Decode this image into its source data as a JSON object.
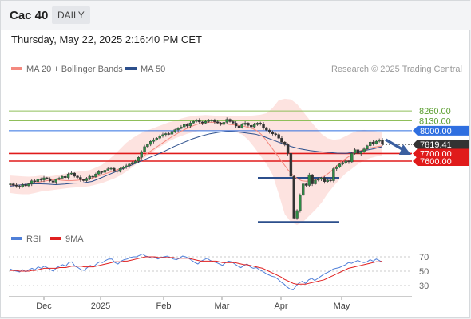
{
  "header": {
    "symbol": "Cac 40",
    "period": "DAILY"
  },
  "timestamp": "Thursday, May 22, 2025 2:16:40 PM CET",
  "credit": "Research © 2025 Trading Central",
  "legend": {
    "main": [
      {
        "label": "MA 20 + Bollinger Bands",
        "color": "#f4897f"
      },
      {
        "label": "MA 50",
        "color": "#2c4f8c"
      }
    ],
    "rsi": [
      {
        "label": "RSI",
        "color": "#4f7fd8"
      },
      {
        "label": "9MA",
        "color": "#e02020"
      }
    ]
  },
  "chart_data": [
    {
      "type": "candlestick",
      "x_labels": [
        "Dec",
        "2025",
        "Feb",
        "Mar",
        "Apr",
        "May"
      ],
      "price_levels": [
        {
          "value": 8260,
          "label": "8260.00",
          "color": "#8fbf5a",
          "style": "line"
        },
        {
          "value": 8130,
          "label": "8130.00",
          "color": "#8fbf5a",
          "style": "line"
        },
        {
          "value": 8000,
          "label": "8000.00",
          "color": "#2f6fe0",
          "style": "tag"
        },
        {
          "value": 7819.41,
          "label": "7819.41",
          "color": "#333333",
          "style": "tag"
        },
        {
          "value": 7700,
          "label": "7700.00",
          "color": "#e01b1b",
          "style": "tag"
        },
        {
          "value": 7600,
          "label": "7600.00",
          "color": "#e01b1b",
          "style": "tag"
        }
      ],
      "support_lines": [
        7380,
        6800
      ],
      "forecast_arrow": "down",
      "ohlc_close": [
        7300,
        7285,
        7270,
        7262,
        7290,
        7275,
        7300,
        7340,
        7330,
        7365,
        7352,
        7380,
        7368,
        7340,
        7322,
        7360,
        7375,
        7398,
        7382,
        7430,
        7442,
        7402,
        7385,
        7356,
        7343,
        7372,
        7400,
        7392,
        7430,
        7460,
        7452,
        7480,
        7498,
        7505,
        7472,
        7463,
        7502,
        7520,
        7538,
        7560,
        7580,
        7600,
        7650,
        7725,
        7790,
        7820,
        7860,
        7882,
        7902,
        7932,
        7948,
        7962,
        7955,
        7990,
        8013,
        8030,
        8050,
        8080,
        8062,
        8102,
        8122,
        8140,
        8115,
        8100,
        8122,
        8132,
        8140,
        8118,
        8102,
        8082,
        8110,
        8150,
        8120,
        8100,
        8062,
        8040,
        8082,
        8100,
        8070,
        8050,
        8080,
        8100,
        8090,
        8040,
        8008,
        7980,
        7960,
        7950,
        7902,
        7850,
        7818,
        7702,
        7400,
        6850,
        6950,
        7150,
        7300,
        7280,
        7420,
        7300,
        7350,
        7360,
        7380,
        7330,
        7350,
        7342,
        7500,
        7520,
        7562,
        7580,
        7602,
        7590,
        7702,
        7750,
        7700,
        7722,
        7760,
        7802,
        7850,
        7830,
        7862,
        7880,
        7822
      ],
      "ma20": [
        7282,
        7282,
        7285,
        7288,
        7300,
        7310,
        7320,
        7330,
        7340,
        7350,
        7355,
        7350,
        7345,
        7342,
        7344,
        7348,
        7355,
        7362,
        7370,
        7390,
        7410,
        7430,
        7450,
        7470,
        7490,
        7510,
        7530,
        7560,
        7600,
        7640,
        7680,
        7720,
        7760,
        7800,
        7840,
        7880,
        7920,
        7955,
        7990,
        8020,
        8045,
        8070,
        8090,
        8100,
        8110,
        8112,
        8110,
        8100,
        8090,
        8082,
        8076,
        8070,
        8060,
        8045,
        8030,
        8000,
        7950,
        7880,
        7800,
        7720,
        7640,
        7560,
        7480,
        7420,
        7370,
        7342,
        7335,
        7340,
        7350,
        7370,
        7400,
        7440,
        7490,
        7550,
        7600,
        7640,
        7680,
        7712,
        7736,
        7752,
        7770,
        7782,
        7792,
        7800
      ],
      "ma50": [
        7270,
        7285,
        7298,
        7302,
        7298,
        7290,
        7298,
        7310,
        7312,
        7332,
        7380,
        7430,
        7480,
        7530,
        7580,
        7630,
        7680,
        7730,
        7790,
        7840,
        7890,
        7930,
        7960,
        7980,
        7990,
        7985,
        7970,
        7955,
        7920,
        7875,
        7830,
        7790,
        7760,
        7740,
        7725,
        7715,
        7705,
        7703,
        7720,
        7740,
        7762,
        7790
      ],
      "bb_upper": [
        7410,
        7405,
        7400,
        7395,
        7400,
        7410,
        7400,
        7405,
        7420,
        7435,
        7450,
        7460,
        7470,
        7480,
        7515,
        7550,
        7610,
        7680,
        7760,
        7840,
        7900,
        7950,
        7990,
        8020,
        8050,
        8080,
        8110,
        8130,
        8160,
        8180,
        8195,
        8200,
        8205,
        8200,
        8195,
        8190,
        8190,
        8190,
        8190,
        8195,
        8200,
        8210,
        8230,
        8300,
        8400,
        8420,
        8410,
        8350,
        8250,
        8150,
        8050,
        7960,
        7900,
        7880,
        7890,
        7930,
        7970,
        8000,
        8010,
        8000,
        7990,
        7975
      ],
      "bb_lower": [
        7180,
        7170,
        7165,
        7165,
        7180,
        7200,
        7210,
        7220,
        7230,
        7240,
        7250,
        7255,
        7260,
        7270,
        7290,
        7310,
        7340,
        7370,
        7410,
        7460,
        7520,
        7580,
        7640,
        7700,
        7760,
        7810,
        7860,
        7900,
        7930,
        7960,
        7980,
        8000,
        8000,
        8000,
        8000,
        7995,
        7990,
        7980,
        7950,
        7880,
        7780,
        7670,
        7560,
        7420,
        7170,
        6900,
        6800,
        6760,
        6800,
        6880,
        6960,
        7050,
        7170,
        7270,
        7360,
        7440,
        7500,
        7560,
        7610,
        7640,
        7660,
        7670
      ],
      "yrange": [
        6750,
        8450
      ]
    },
    {
      "type": "line",
      "name": "RSI panel",
      "y_ticks": [
        70,
        50,
        30
      ],
      "ylim": [
        20,
        80
      ],
      "series": [
        {
          "name": "RSI",
          "color": "#4f7fd8",
          "values": [
            53,
            51,
            50,
            49,
            52,
            49,
            52,
            54,
            52,
            56,
            54,
            57,
            55,
            52,
            50,
            55,
            57,
            59,
            57,
            62,
            63,
            57,
            55,
            52,
            51,
            55,
            58,
            56,
            60,
            63,
            62,
            65,
            67,
            67,
            62,
            60,
            64,
            66,
            67,
            69,
            70,
            70,
            72,
            74,
            71,
            70,
            68,
            69,
            67,
            69,
            70,
            71,
            69,
            67,
            66,
            68,
            71,
            70,
            68,
            65,
            62,
            60,
            64,
            66,
            68,
            65,
            63,
            62,
            60,
            58,
            62,
            64,
            63,
            60,
            57,
            55,
            58,
            60,
            56,
            54,
            55,
            52,
            50,
            47,
            45,
            43,
            42,
            39,
            35,
            32,
            28,
            25,
            24,
            30,
            34,
            36,
            33,
            38,
            40,
            37,
            40,
            43,
            46,
            48,
            50,
            53,
            54,
            55,
            57,
            59,
            62,
            61,
            63,
            65,
            63,
            62,
            63,
            66,
            64,
            67,
            65,
            62
          ]
        },
        {
          "name": "9MA",
          "color": "#e02020",
          "values": [
            51,
            51,
            51,
            50,
            50,
            50,
            50,
            51,
            51,
            52,
            53,
            54,
            54,
            54,
            54,
            54,
            55,
            55,
            55,
            56,
            57,
            57,
            57,
            57,
            56,
            56,
            56,
            56,
            57,
            58,
            59,
            60,
            61,
            62,
            63,
            63,
            63,
            64,
            64,
            65,
            66,
            67,
            68,
            69,
            70,
            70,
            70,
            70,
            69,
            69,
            69,
            69,
            69,
            69,
            68,
            68,
            68,
            68,
            68,
            67,
            66,
            65,
            64,
            64,
            64,
            64,
            64,
            64,
            63,
            62,
            62,
            62,
            62,
            62,
            61,
            60,
            59,
            59,
            58,
            57,
            56,
            55,
            54,
            52,
            50,
            48,
            46,
            44,
            42,
            39,
            37,
            35,
            33,
            32,
            32,
            32,
            32,
            33,
            34,
            35,
            36,
            37,
            38,
            40,
            42,
            44,
            46,
            48,
            50,
            52,
            54,
            55,
            56,
            57,
            58,
            59,
            60,
            61,
            62,
            63,
            63,
            64
          ]
        }
      ]
    }
  ]
}
